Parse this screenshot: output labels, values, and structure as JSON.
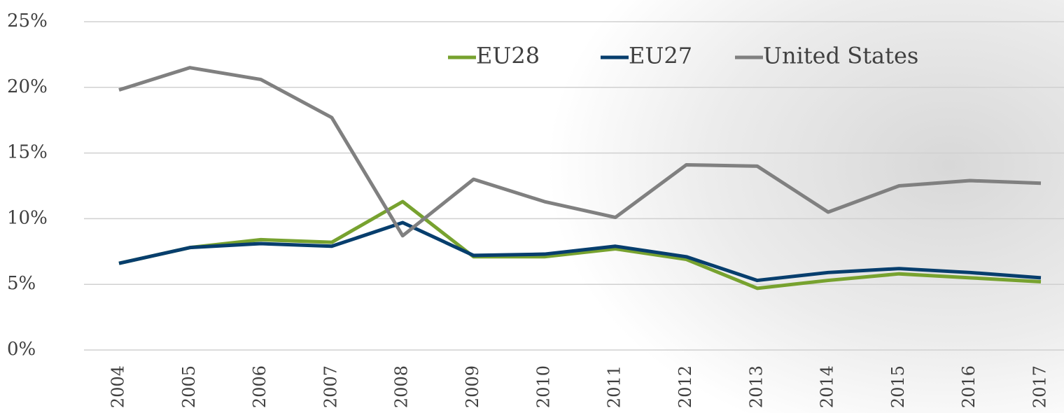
{
  "chart_data": {
    "type": "line",
    "categories": [
      "2004",
      "2005",
      "2006",
      "2007",
      "2008",
      "2009",
      "2010",
      "2011",
      "2012",
      "2013",
      "2014",
      "2015",
      "2016",
      "2017"
    ],
    "series": [
      {
        "name": "EU28",
        "color": "#77a22f",
        "values": [
          6.6,
          7.8,
          8.4,
          8.2,
          11.3,
          7.1,
          7.1,
          7.7,
          6.9,
          4.7,
          5.3,
          5.8,
          5.5,
          5.2
        ]
      },
      {
        "name": "EU27",
        "color": "#073e6d",
        "values": [
          6.6,
          7.8,
          8.1,
          7.9,
          9.7,
          7.2,
          7.3,
          7.9,
          7.1,
          5.3,
          5.9,
          6.2,
          5.9,
          5.5
        ]
      },
      {
        "name": "United States",
        "color": "#808080",
        "values": [
          19.8,
          21.5,
          20.6,
          17.7,
          8.7,
          13.0,
          11.3,
          10.1,
          14.1,
          14.0,
          10.5,
          12.5,
          12.9,
          12.7
        ]
      }
    ],
    "ylim": [
      0,
      25
    ],
    "yticks": [
      {
        "value": 0,
        "label": "0%"
      },
      {
        "value": 5,
        "label": "5%"
      },
      {
        "value": 10,
        "label": "10%"
      },
      {
        "value": 15,
        "label": "15%"
      },
      {
        "value": 20,
        "label": "20%"
      },
      {
        "value": 25,
        "label": "25%"
      }
    ],
    "grid": true,
    "legend": "top"
  }
}
